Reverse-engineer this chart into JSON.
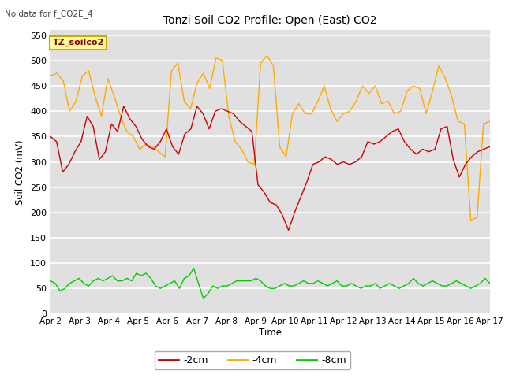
{
  "title": "Tonzi Soil CO2 Profile: Open (East) CO2",
  "subtitle": "No data for f_CO2E_4",
  "ylabel": "Soil CO2 (mV)",
  "xlabel": "Time",
  "legend_label": "TZ_soilco2",
  "xlim": [
    0,
    15
  ],
  "ylim": [
    0,
    560
  ],
  "yticks": [
    0,
    50,
    100,
    150,
    200,
    250,
    300,
    350,
    400,
    450,
    500,
    550
  ],
  "xtick_labels": [
    "Apr 2",
    "Apr 3",
    "Apr 4",
    "Apr 5",
    "Apr 6",
    "Apr 7",
    "Apr 8",
    "Apr 9",
    "Apr 10",
    "Apr 11",
    "Apr 12",
    "Apr 13",
    "Apr 14",
    "Apr 15",
    "Apr 16",
    "Apr 17"
  ],
  "color_2cm": "#cc0000",
  "color_4cm": "#ffaa00",
  "color_8cm": "#00cc00",
  "bg_color": "#e0e0e0",
  "legend_bg": "#ffff99",
  "legend_border": "#ccaa00",
  "series_2cm": [
    350,
    340,
    280,
    295,
    320,
    340,
    390,
    370,
    305,
    320,
    375,
    360,
    410,
    385,
    370,
    345,
    330,
    325,
    340,
    365,
    330,
    315,
    355,
    365,
    410,
    395,
    365,
    400,
    405,
    400,
    395,
    380,
    370,
    360,
    255,
    240,
    220,
    215,
    195,
    165,
    200,
    230,
    260,
    295,
    300,
    310,
    305,
    295,
    300,
    295,
    300,
    310,
    340,
    335,
    340,
    350,
    360,
    365,
    340,
    325,
    315,
    325,
    320,
    325,
    365,
    370,
    305,
    270,
    295,
    310,
    320,
    325,
    330
  ],
  "series_4cm": [
    470,
    475,
    460,
    400,
    420,
    470,
    480,
    430,
    390,
    465,
    430,
    390,
    360,
    350,
    325,
    335,
    330,
    320,
    310,
    480,
    495,
    420,
    405,
    455,
    475,
    445,
    505,
    500,
    390,
    340,
    325,
    300,
    295,
    495,
    510,
    490,
    330,
    310,
    395,
    415,
    395,
    395,
    420,
    450,
    405,
    380,
    395,
    400,
    420,
    450,
    435,
    450,
    415,
    420,
    395,
    400,
    440,
    450,
    445,
    395,
    440,
    490,
    465,
    430,
    380,
    375,
    185,
    190,
    375,
    380
  ],
  "series_8cm": [
    65,
    60,
    45,
    50,
    60,
    65,
    70,
    60,
    55,
    65,
    70,
    65,
    70,
    75,
    65,
    65,
    70,
    65,
    80,
    75,
    80,
    70,
    55,
    50,
    55,
    60,
    65,
    50,
    70,
    75,
    90,
    60,
    30,
    40,
    55,
    50,
    55,
    55,
    60,
    65,
    65,
    65,
    65,
    70,
    65,
    55,
    50,
    50,
    55,
    60,
    55,
    55,
    60,
    65,
    60,
    60,
    65,
    60,
    55,
    60,
    65,
    55,
    55,
    60,
    55,
    50,
    55,
    55,
    60,
    50,
    55,
    60,
    55,
    50,
    55,
    60,
    70,
    60,
    55,
    60,
    65,
    60,
    55,
    55,
    60,
    65,
    60,
    55,
    50,
    55,
    60,
    70,
    60
  ]
}
